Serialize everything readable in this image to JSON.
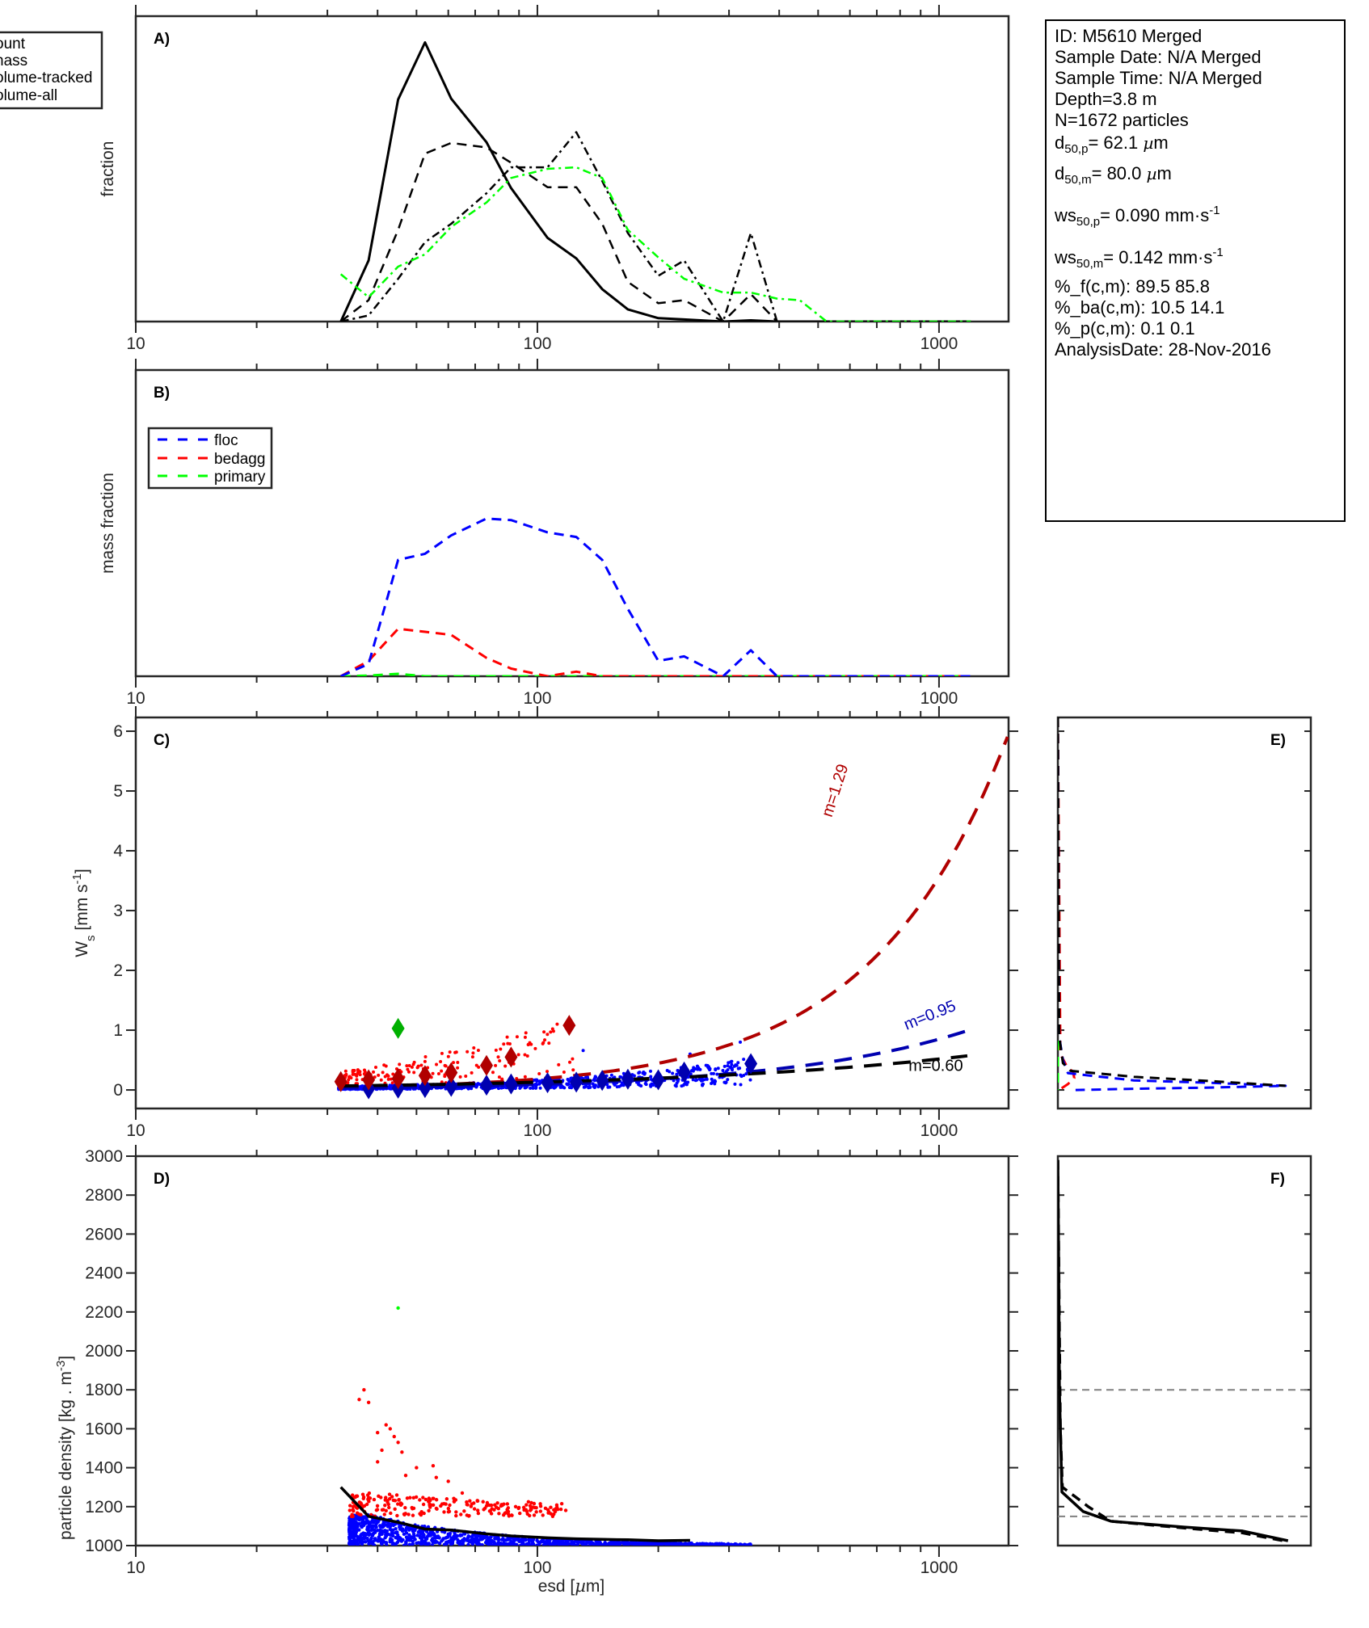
{
  "info_box": {
    "id": "ID: M5610 Merged",
    "sample_date": "Sample Date: N/A Merged",
    "sample_time": "Sample Time: N/A Merged",
    "depth": "Depth=3.8 m",
    "n": "N=1672 particles",
    "d50p": {
      "prefix": "d",
      "sub": "50,p",
      "value": "=  62.1 ",
      "mu": "µ",
      "unit": "m"
    },
    "d50m": {
      "prefix": "d",
      "sub": "50,m",
      "value": "=  80.0 ",
      "mu": "µ",
      "unit": "m"
    },
    "ws50p": {
      "prefix": "ws",
      "sub": "50,p",
      "value": "= 0.090 mm·s",
      "sup": "-1"
    },
    "ws50m": {
      "prefix": "ws",
      "sub": "50,m",
      "value": "= 0.142 mm·s",
      "sup": "-1"
    },
    "pct_f": "%_f(c,m): 89.5 85.8",
    "pct_ba": "%_ba(c,m): 10.5 14.1",
    "pct_p": "%_p(c,m): 0.1 0.1",
    "analysis_date": "AnalysisDate: 28-Nov-2016"
  },
  "colors": {
    "black": "#000000",
    "axis": "#262626",
    "floc": "#0000ff",
    "bedagg": "#ff0000",
    "primary": "#00ff00",
    "fit_bedagg": "#b00000",
    "fit_floc": "#0000b0",
    "green_marker": "#00b000",
    "gray_ref": "#808080"
  },
  "chart_data": [
    {
      "panel": "A",
      "type": "line",
      "panel_label": "A)",
      "xscale": "log",
      "xlim": [
        10,
        1490
      ],
      "ylim": [
        0,
        1
      ],
      "xticks": [
        10,
        100,
        1000
      ],
      "xtick_labels": [
        "10",
        "100",
        "1000"
      ],
      "ylabel": "fraction",
      "xlabel": "",
      "legend": {
        "placement": "outside-top-left",
        "entries": [
          "count",
          "mass",
          "volume-tracked",
          "volume-all"
        ],
        "visible_text": [
          "ount",
          "nass",
          "olume-tracked",
          "olume-all"
        ]
      },
      "series": [
        {
          "name": "count",
          "style": "solid",
          "color": "#000000",
          "x": [
            32.4,
            38,
            45,
            52.5,
            61,
            74.7,
            86,
            106,
            125,
            145,
            168,
            200,
            232,
            290,
            340,
            395,
            1200
          ],
          "y": [
            0,
            0.2,
            0.727,
            0.914,
            0.73,
            0.587,
            0.437,
            0.274,
            0.207,
            0.106,
            0.04,
            0.011,
            0.007,
            0,
            0.004,
            0,
            0
          ]
        },
        {
          "name": "mass",
          "style": "dashed",
          "color": "#000000",
          "x": [
            32.4,
            38,
            45,
            52.5,
            61,
            74.7,
            86,
            106,
            125,
            145,
            168,
            200,
            232,
            290,
            340,
            395,
            1200
          ],
          "y": [
            0,
            0.07,
            0.3,
            0.55,
            0.585,
            0.57,
            0.52,
            0.44,
            0.44,
            0.32,
            0.13,
            0.06,
            0.07,
            0,
            0.09,
            0,
            0
          ]
        },
        {
          "name": "volume-tracked",
          "style": "dashdot",
          "color": "#000000",
          "x": [
            32.4,
            38,
            45,
            52.5,
            61,
            74.7,
            86,
            106,
            125,
            145,
            168,
            200,
            232,
            290,
            340,
            395,
            1200
          ],
          "y": [
            0,
            0.02,
            0.14,
            0.26,
            0.32,
            0.42,
            0.505,
            0.505,
            0.62,
            0.46,
            0.29,
            0.15,
            0.2,
            0,
            0.29,
            0,
            0
          ]
        },
        {
          "name": "volume-all",
          "style": "dashdot",
          "color": "#00ff00",
          "x": [
            32.4,
            38,
            45,
            52.5,
            61,
            74.7,
            86,
            106,
            125,
            145,
            168,
            200,
            232,
            290,
            340,
            395,
            450,
            525,
            1200
          ],
          "y": [
            0.155,
            0.08,
            0.18,
            0.22,
            0.31,
            0.39,
            0.47,
            0.5,
            0.505,
            0.47,
            0.3,
            0.21,
            0.14,
            0.095,
            0.095,
            0.075,
            0.07,
            0,
            0
          ]
        }
      ]
    },
    {
      "panel": "B",
      "type": "line",
      "panel_label": "B)",
      "xscale": "log",
      "xlim": [
        10,
        1490
      ],
      "ylim": [
        0,
        1
      ],
      "xticks": [
        10,
        100,
        1000
      ],
      "xtick_labels": [
        "10",
        "100",
        "1000"
      ],
      "ylabel": "mass fraction",
      "xlabel": "",
      "legend": {
        "placement": "top-left",
        "entries": [
          "floc",
          "bedagg",
          "primary"
        ]
      },
      "series": [
        {
          "name": "floc",
          "style": "dashed",
          "color": "#0000ff",
          "x": [
            32.4,
            38,
            45,
            52.5,
            61,
            74.7,
            86,
            106,
            125,
            145,
            168,
            200,
            232,
            290,
            340,
            395,
            1200
          ],
          "y": [
            0,
            0.04,
            0.38,
            0.4,
            0.46,
            0.515,
            0.51,
            0.47,
            0.455,
            0.38,
            0.22,
            0.05,
            0.065,
            0,
            0.085,
            0,
            0
          ]
        },
        {
          "name": "bedagg",
          "style": "dashed",
          "color": "#ff0000",
          "x": [
            32.4,
            38,
            45,
            52.5,
            61,
            74.7,
            86,
            106,
            125,
            145,
            168,
            200,
            232,
            290,
            340,
            395,
            1200
          ],
          "y": [
            0,
            0.05,
            0.155,
            0.145,
            0.135,
            0.06,
            0.025,
            0,
            0.015,
            0,
            0,
            0,
            0,
            0,
            0,
            0,
            0
          ]
        },
        {
          "name": "primary",
          "style": "dashed",
          "color": "#00ff00",
          "x": [
            32.4,
            38,
            45,
            52.5,
            61,
            74.7,
            86,
            106,
            125,
            145,
            168,
            200,
            232,
            290,
            340,
            395,
            1200
          ],
          "y": [
            0,
            0.002,
            0.008,
            0,
            0,
            0,
            0,
            0,
            0,
            0,
            0,
            0,
            0,
            0,
            0,
            0,
            0
          ]
        }
      ]
    },
    {
      "panel": "C",
      "type": "scatter",
      "panel_label": "C)",
      "xscale": "log",
      "xlim": [
        10,
        1490
      ],
      "ylim": [
        -0.31,
        6.23
      ],
      "xticks": [
        10,
        100,
        1000
      ],
      "xtick_labels": [
        "10",
        "100",
        "1000"
      ],
      "yticks": [
        0,
        1,
        2,
        3,
        4,
        5,
        6
      ],
      "ytick_labels": [
        "0",
        "1",
        "2",
        "3",
        "4",
        "5",
        "6"
      ],
      "ylabel": {
        "base": "W",
        "sub": "s",
        "rest": " [mm s",
        "sup": "-1",
        "close": "]"
      },
      "xlabel": "",
      "fits": [
        {
          "name": "bedagg-fit",
          "label": "m=1.29",
          "color": "#b00000",
          "coef": 0.00048,
          "exponent": 1.29,
          "x_range": [
            32.4,
            1490
          ]
        },
        {
          "name": "floc-fit",
          "label": "m=0.95",
          "color": "#0000b0",
          "coef": 0.0012,
          "exponent": 0.95,
          "x_range": [
            32.4,
            1200
          ]
        },
        {
          "name": "all-fit",
          "label": "m=0.60",
          "color": "#000000",
          "coef": 0.0082,
          "exponent": 0.6,
          "x_range": [
            32.4,
            1200
          ]
        }
      ],
      "binned_bedagg": {
        "x": [
          32.4,
          38,
          45,
          52.5,
          61,
          74.7,
          86,
          120
        ],
        "y": [
          0.14,
          0.17,
          0.19,
          0.24,
          0.29,
          0.41,
          0.55,
          1.08
        ]
      },
      "binned_floc": {
        "x": [
          38,
          45,
          52.5,
          61,
          74.7,
          86,
          106,
          125,
          145,
          168,
          200,
          232,
          340
        ],
        "y": [
          0.02,
          0.03,
          0.04,
          0.06,
          0.08,
          0.1,
          0.12,
          0.13,
          0.16,
          0.18,
          0.17,
          0.3,
          0.44
        ]
      },
      "binned_primary": {
        "x": [
          45
        ],
        "y": [
          1.03
        ]
      },
      "scatter_floc": {
        "color": "#0000ff",
        "x_range": [
          32,
          340
        ],
        "y_typical": [
          0.0,
          0.35
        ],
        "outliers": [
          [
            240,
            0.6
          ],
          [
            320,
            0.8
          ],
          [
            130,
            0.66
          ]
        ]
      },
      "scatter_bedagg": {
        "color": "#ff0000",
        "x_range": [
          33,
          125
        ],
        "y_typical": [
          0.05,
          0.5
        ],
        "outliers": [
          [
            95,
            0.76
          ],
          [
            112,
            1.1
          ]
        ]
      }
    },
    {
      "panel": "D",
      "type": "scatter",
      "panel_label": "D)",
      "xscale": "log",
      "xlim": [
        10,
        1490
      ],
      "ylim": [
        1000,
        3000
      ],
      "xticks": [
        10,
        100,
        1000
      ],
      "xtick_labels": [
        "10",
        "100",
        "1000"
      ],
      "yticks": [
        1000,
        1200,
        1400,
        1600,
        1800,
        2000,
        2200,
        2400,
        2600,
        2800,
        3000
      ],
      "ytick_labels": [
        "1000",
        "1200",
        "1400",
        "1600",
        "1800",
        "2000",
        "2200",
        "2400",
        "2600",
        "2800",
        "3000"
      ],
      "ylabel": {
        "base": "particle density [kg . m",
        "sup": "-3",
        "close": "]"
      },
      "xlabel": {
        "base": "esd [",
        "mu": "µ",
        "close": "m]"
      },
      "mean_curve": {
        "x": [
          32.4,
          38,
          45,
          52.5,
          61,
          74.7,
          86,
          106,
          125,
          145,
          168,
          200,
          240
        ],
        "y": [
          1300,
          1150,
          1120,
          1085,
          1080,
          1060,
          1050,
          1040,
          1035,
          1032,
          1030,
          1025,
          1027
        ]
      },
      "primary_point": {
        "x": 45,
        "y": 2220
      },
      "bedagg_outliers": {
        "x": [
          37,
          36,
          38,
          40,
          42,
          43,
          44,
          45,
          46,
          41,
          40,
          47,
          50,
          55,
          56,
          60,
          95,
          115,
          65,
          75,
          80
        ],
        "y": [
          1800,
          1750,
          1735,
          1580,
          1620,
          1600,
          1560,
          1530,
          1480,
          1490,
          1430,
          1360,
          1400,
          1410,
          1350,
          1330,
          1225,
          1215,
          1270,
          1220,
          1190
        ]
      },
      "floc_scatter": {
        "color": "#0000ff",
        "x_range": [
          34,
          340
        ],
        "y_range": [
          1000,
          1160
        ]
      },
      "bedagg_scatter": {
        "color": "#ff0000",
        "x_range": [
          34,
          118
        ],
        "y_range": [
          1150,
          1300
        ]
      }
    },
    {
      "panel": "E",
      "type": "line",
      "panel_label": "E)",
      "orientation": "vertical-profile",
      "ylim": [
        -0.31,
        6.23
      ],
      "xlim": [
        0,
        1
      ],
      "series": [
        {
          "name": "all",
          "style": "dashed",
          "color": "#000000",
          "x": [
            0,
            0.005,
            0.02,
            0.05,
            0.3,
            0.6,
            0.9
          ],
          "y": [
            6.23,
            0.9,
            0.45,
            0.32,
            0.22,
            0.15,
            0.07
          ]
        },
        {
          "name": "floc",
          "style": "dashed",
          "color": "#0000ff",
          "x": [
            0,
            0.005,
            0.02,
            0.04,
            0.3,
            0.6,
            0.9,
            0.6,
            0.3,
            0.07
          ],
          "y": [
            6.23,
            0.9,
            0.5,
            0.28,
            0.16,
            0.12,
            0.07,
            0.04,
            0.02,
            0.0
          ]
        },
        {
          "name": "bedagg",
          "style": "dashed",
          "color": "#ff0000",
          "x": [
            0,
            0.01,
            0.035,
            0.06,
            0.065,
            0.04,
            0.005
          ],
          "y": [
            6.23,
            0.6,
            0.4,
            0.3,
            0.2,
            0.1,
            0.0
          ]
        },
        {
          "name": "primary",
          "style": "dashed",
          "color": "#00ff00",
          "x": [
            0,
            0,
            0
          ],
          "y": [
            6.23,
            1.0,
            0.0
          ]
        }
      ]
    },
    {
      "panel": "F",
      "type": "line",
      "panel_label": "F)",
      "orientation": "vertical-profile",
      "ylim": [
        1000,
        3000
      ],
      "xlim": [
        0,
        1
      ],
      "reference_lines": [
        1800,
        1150
      ],
      "series": [
        {
          "name": "all",
          "style": "solid",
          "color": "#000000",
          "x": [
            0,
            0.004,
            0.006,
            0.01,
            0.016,
            0.1,
            0.21,
            0.5,
            0.73,
            0.91
          ],
          "y": [
            2980,
            2250,
            1800,
            1600,
            1275,
            1175,
            1125,
            1095,
            1075,
            1025
          ]
        },
        {
          "name": "all-dashed",
          "style": "dashed",
          "color": "#000000",
          "x": [
            0,
            0.005,
            0.01,
            0.018,
            0.07,
            0.12,
            0.21,
            0.5,
            0.73,
            0.89
          ],
          "y": [
            2980,
            2250,
            1600,
            1300,
            1250,
            1200,
            1125,
            1090,
            1065,
            1025
          ]
        }
      ]
    }
  ]
}
